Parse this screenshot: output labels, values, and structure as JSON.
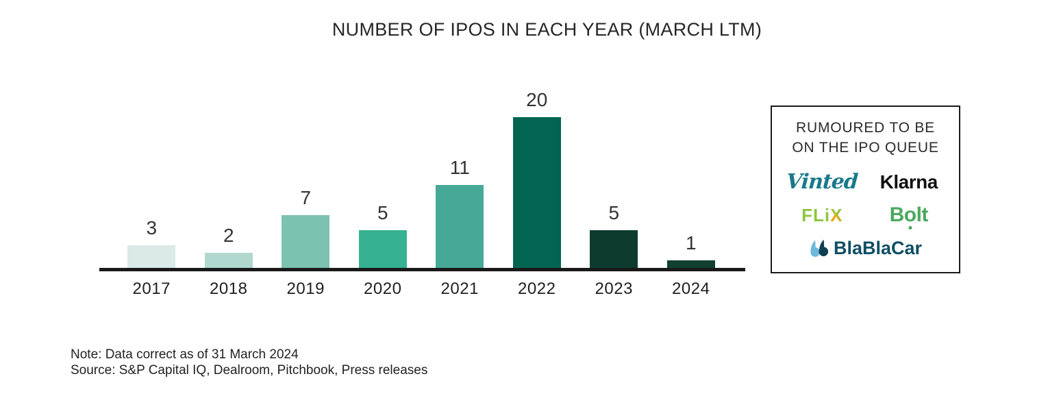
{
  "title": "NUMBER OF IPOS IN EACH YEAR (MARCH LTM)",
  "chart_data": {
    "type": "bar",
    "title": "NUMBER OF IPOS IN EACH YEAR (MARCH LTM)",
    "categories": [
      "2017",
      "2018",
      "2019",
      "2020",
      "2021",
      "2022",
      "2023",
      "2024"
    ],
    "values": [
      3,
      2,
      7,
      5,
      11,
      20,
      5,
      1
    ],
    "bar_colors": [
      "#dbeae7",
      "#b0d8cf",
      "#7cc2b1",
      "#36b192",
      "#46a998",
      "#016552",
      "#0d3c2e",
      "#113f30"
    ],
    "xlabel": "",
    "ylabel": "",
    "ylim": [
      0,
      22
    ],
    "y_axis_visible": false,
    "grid": false,
    "data_labels": true,
    "axis_line_color": "#191919",
    "legend_position": "right"
  },
  "legend": {
    "heading_line1": "RUMOURED TO BE",
    "heading_line2": "ON THE IPO QUEUE",
    "companies": [
      {
        "name": "Vinted",
        "color": "#19798b"
      },
      {
        "name": "Klarna",
        "color": "#101010"
      },
      {
        "name": "Flix",
        "parts": [
          "FLi",
          "X"
        ],
        "color": "#8dc63f",
        "accent_color": "#f0a200"
      },
      {
        "name": "Bolt",
        "parts": [
          "B",
          "o",
          "lt"
        ],
        "color": "#4aa85e"
      },
      {
        "name": "BlaBlaCar",
        "color": "#0e4e63",
        "icon": "blablacar-quotes-icon",
        "icon_colors": [
          "#6cb9dc",
          "#0e3f52"
        ]
      }
    ]
  },
  "footnote": {
    "note": "Note: Data correct as of 31 March 2024",
    "source": "Source: S&P Capital IQ, Dealroom, Pitchbook, Press releases"
  }
}
